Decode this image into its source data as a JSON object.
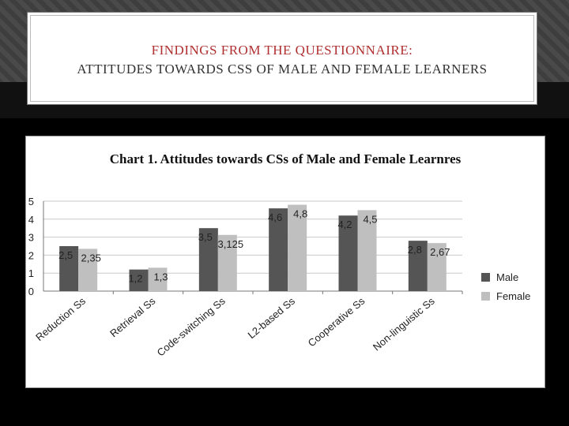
{
  "slide": {
    "title_line1": "FINDINGS FROM THE QUESTIONNAIRE:",
    "title_line2": "ATTITUDES TOWARDS CSS OF MALE AND FEMALE LEARNERS"
  },
  "chart_data": {
    "type": "bar",
    "title": "Chart 1. Attitudes towards CSs of Male and Female Learnres",
    "categories": [
      "Reduction Ss",
      "Retrieval Ss",
      "Code-switching Ss",
      "L2-based Ss",
      "Cooperative Ss",
      "Non-linguistic Ss"
    ],
    "series": [
      {
        "name": "Male",
        "values": [
          2.5,
          1.2,
          3.5,
          4.6,
          4.2,
          2.8
        ],
        "labels": [
          "2,5",
          "1,2",
          "3,5",
          "4,6",
          "4,2",
          "2,8"
        ],
        "color": "#555555"
      },
      {
        "name": "Female",
        "values": [
          2.35,
          1.3,
          3.125,
          4.8,
          4.5,
          2.67
        ],
        "labels": [
          "2,35",
          "1,3",
          "3,125",
          "4,8",
          "4,5",
          "2,67"
        ],
        "color": "#bfbfbf"
      }
    ],
    "yticks": [
      0,
      1,
      2,
      3,
      4,
      5
    ],
    "ylim": [
      0,
      5
    ],
    "grid": true,
    "legend": "right"
  }
}
